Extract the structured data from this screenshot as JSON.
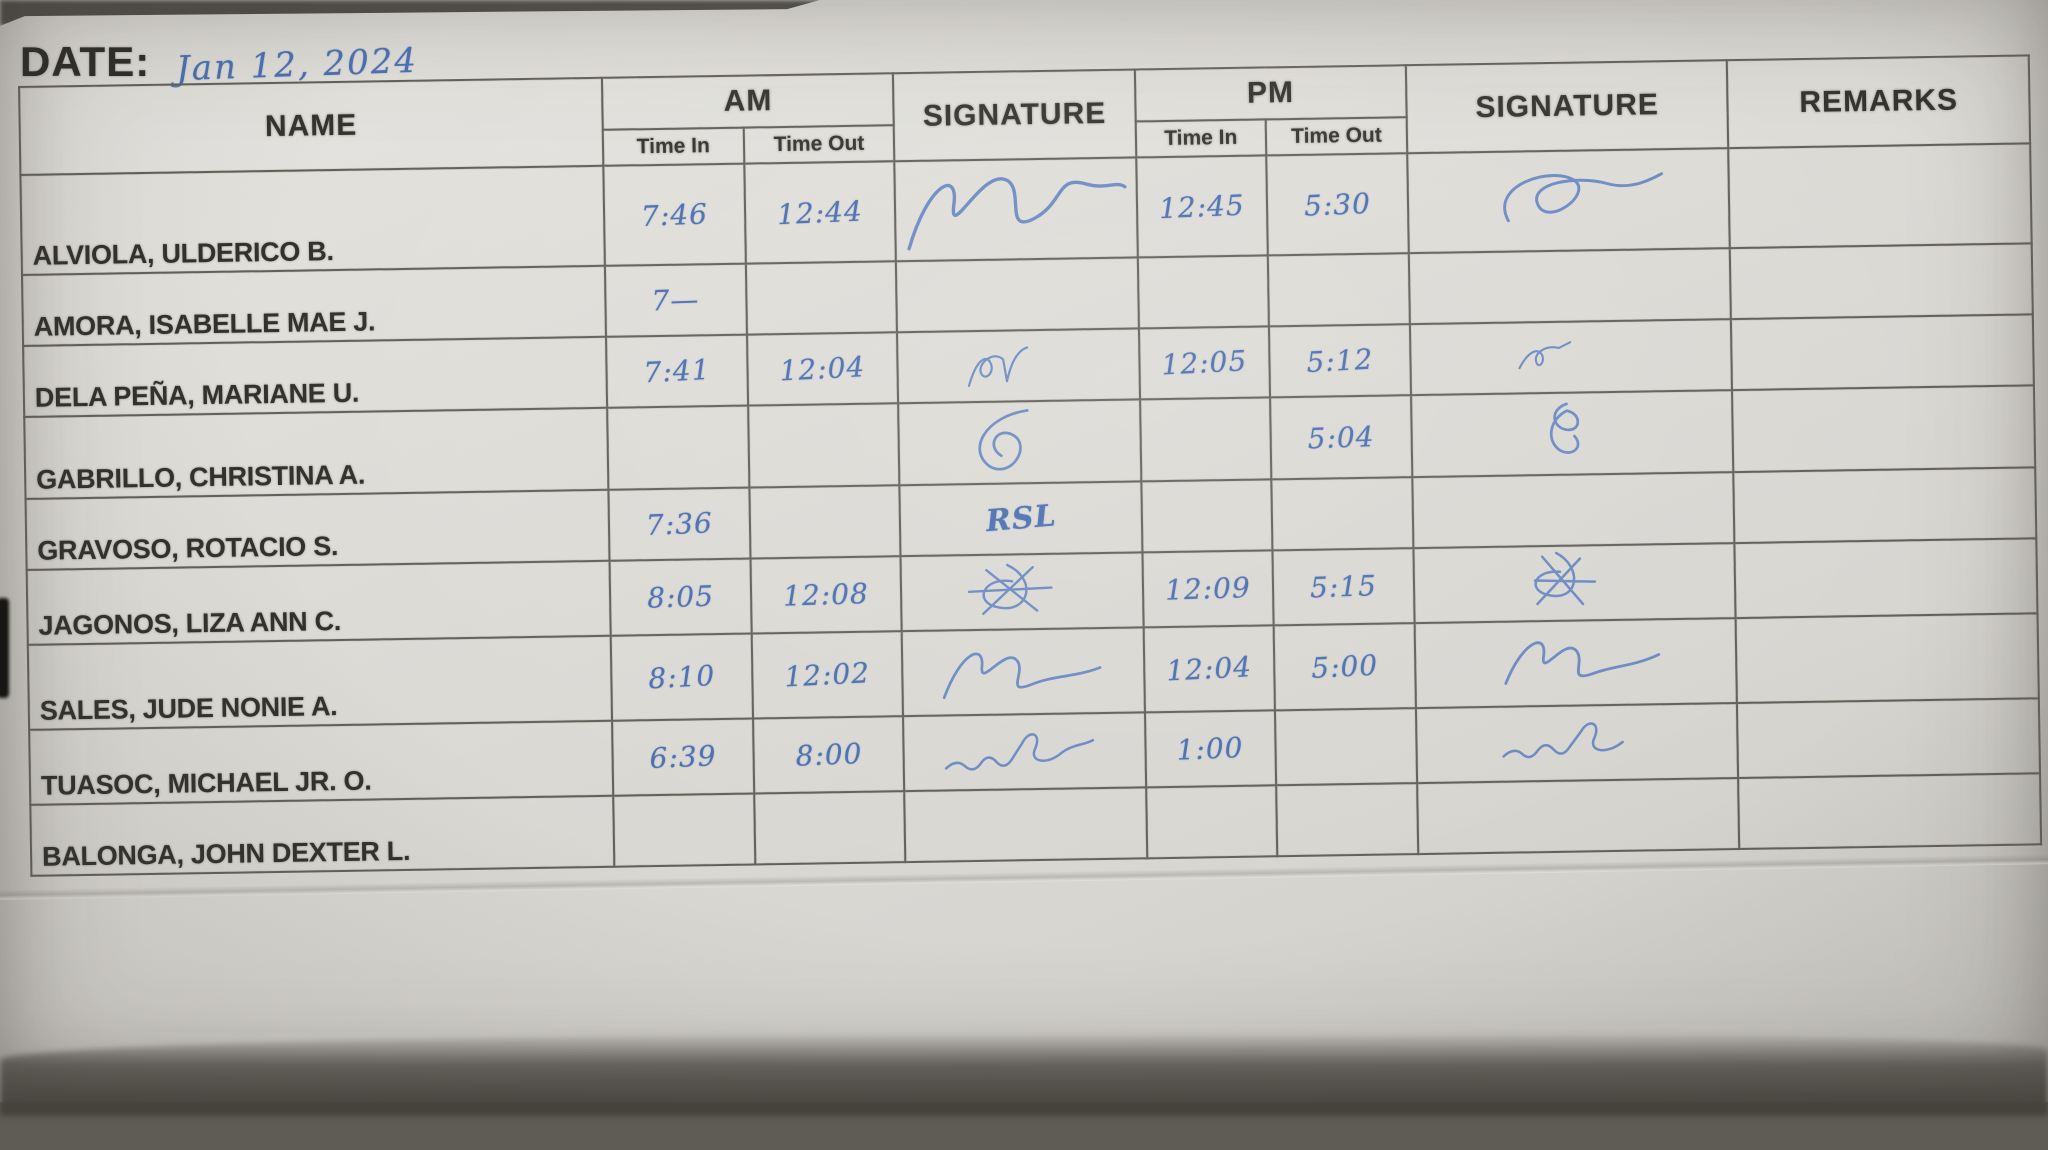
{
  "header": {
    "date_label": "DATE:",
    "date_value": "Jan 12, 2024"
  },
  "colors": {
    "ink_blue": "#4a6fb0",
    "paper": "#dedcd7",
    "grid_line": "#63605a",
    "printed_text": "#33312c"
  },
  "table": {
    "col_headers": {
      "name": "NAME",
      "am": "AM",
      "pm": "PM",
      "signature_am": "SIGNATURE",
      "signature_pm": "SIGNATURE",
      "remarks": "REMARKS",
      "time_in": "Time In",
      "time_out": "Time Out"
    },
    "rows": [
      {
        "name": "ALVIOLA, ULDERICO B.",
        "am_in": "7:46",
        "am_out": "12:44",
        "am_sig": {
          "kind": "scribble",
          "variant": "flourish-tall"
        },
        "pm_in": "12:45",
        "pm_out": "5:30",
        "pm_sig": {
          "kind": "scribble",
          "variant": "flourish-oval"
        },
        "remarks": ""
      },
      {
        "name": "AMORA, ISABELLE MAE J.",
        "am_in": "7—",
        "am_out": "",
        "am_sig": null,
        "pm_in": "",
        "pm_out": "",
        "pm_sig": null,
        "remarks": ""
      },
      {
        "name": "DELA PEÑA, MARIANE U.",
        "am_in": "7:41",
        "am_out": "12:04",
        "am_sig": {
          "kind": "scribble",
          "variant": "jn-scribble"
        },
        "pm_in": "12:05",
        "pm_out": "5:12",
        "pm_sig": {
          "kind": "scribble",
          "variant": "jn-small"
        },
        "remarks": ""
      },
      {
        "name": "GABRILLO, CHRISTINA A.",
        "am_in": "",
        "am_out": "",
        "am_sig": {
          "kind": "scribble",
          "variant": "c-loop"
        },
        "pm_in": "",
        "pm_out": "5:04",
        "pm_sig": {
          "kind": "scribble",
          "variant": "loop-8"
        },
        "remarks": ""
      },
      {
        "name": "GRAVOSO, ROTACIO S.",
        "am_in": "7:36",
        "am_out": "",
        "am_sig": {
          "kind": "text",
          "value": "RSL"
        },
        "pm_in": "",
        "pm_out": "",
        "pm_sig": null,
        "remarks": ""
      },
      {
        "name": "JAGONOS, LIZA ANN C.",
        "am_in": "8:05",
        "am_out": "12:08",
        "am_sig": {
          "kind": "scribble",
          "variant": "star-scribble"
        },
        "pm_in": "12:09",
        "pm_out": "5:15",
        "pm_sig": {
          "kind": "scribble",
          "variant": "star-scribble2"
        },
        "remarks": ""
      },
      {
        "name": "SALES, JUDE NONIE A.",
        "am_in": "8:10",
        "am_out": "12:02",
        "am_sig": {
          "kind": "scribble",
          "variant": "loops-tail"
        },
        "pm_in": "12:04",
        "pm_out": "5:00",
        "pm_sig": {
          "kind": "scribble",
          "variant": "loops-tail2"
        },
        "remarks": ""
      },
      {
        "name": "TUASOC, MICHAEL JR. O.",
        "am_in": "6:39",
        "am_out": "8:00",
        "am_sig": {
          "kind": "scribble",
          "variant": "wave-tail"
        },
        "pm_in": "1:00",
        "pm_out": "",
        "pm_sig": {
          "kind": "scribble",
          "variant": "wave-tail2"
        },
        "remarks": ""
      },
      {
        "name": "BALONGA, JOHN DEXTER L.",
        "am_in": "",
        "am_out": "",
        "am_sig": null,
        "pm_in": "",
        "pm_out": "",
        "pm_sig": null,
        "remarks": ""
      }
    ]
  }
}
